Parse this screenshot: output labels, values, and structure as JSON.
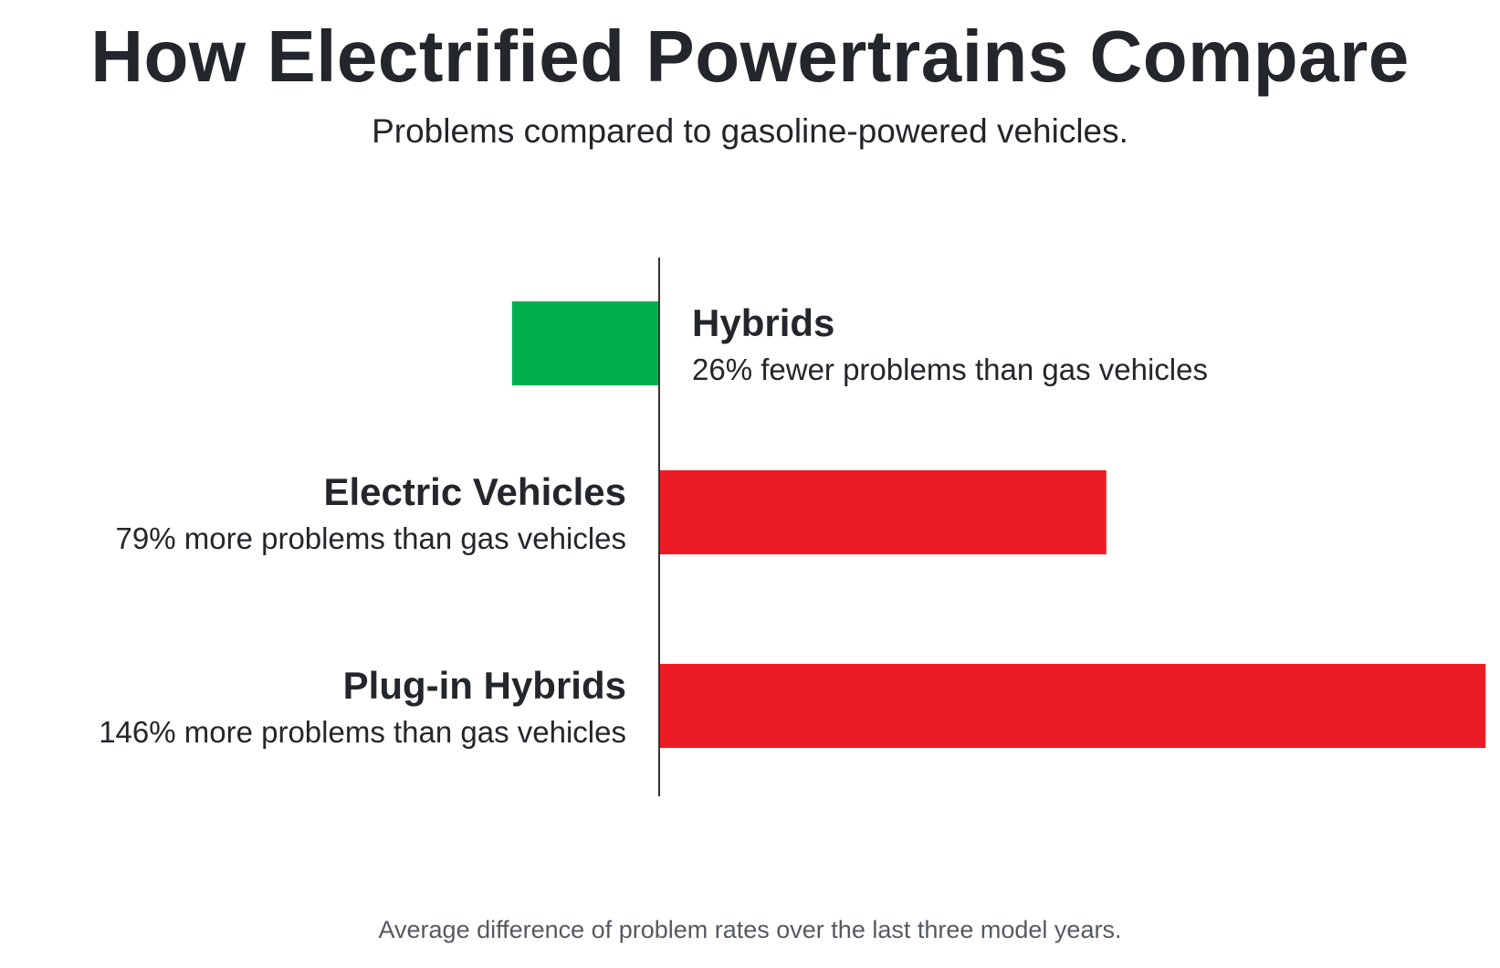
{
  "title": "How Electrified Powertrains Compare",
  "subtitle": "Problems compared to gasoline-powered vehicles.",
  "footnote": "Average difference of problem rates over the last three model years.",
  "colors": {
    "fewer": "#00b04f",
    "more": "#ec1c24",
    "axis": "#333333"
  },
  "chart_data": {
    "type": "bar",
    "orientation": "horizontal",
    "title": "How Electrified Powertrains Compare",
    "subtitle": "Problems compared to gasoline-powered vehicles.",
    "categories": [
      "Hybrids",
      "Electric Vehicles",
      "Plug-in Hybrids"
    ],
    "values": [
      -26,
      79,
      146
    ],
    "unit": "%",
    "descriptions": [
      "26% fewer problems than gas vehicles",
      "79% more problems than gas vehicles",
      "146% more problems than gas vehicles"
    ],
    "xlim": [
      -26,
      146
    ],
    "grid": false,
    "legend": "none",
    "footnote": "Average difference of problem rates over the last three model years."
  }
}
